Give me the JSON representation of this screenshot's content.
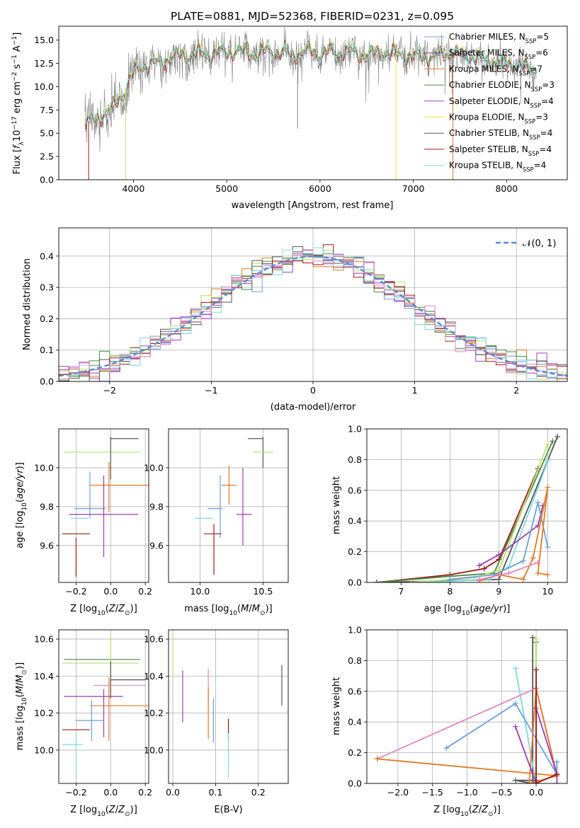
{
  "title": "PLATE=0881, MJD=52368, FIBERID=0231, z=0.095",
  "colors": {
    "chabrier_miles": "#6f9fd8",
    "salpeter_miles": "#9a3fb0",
    "kroupa_miles": "#e07b28",
    "chabrier_elodie": "#4a8a4a",
    "salpeter_elodie": "#a040c0",
    "kroupa_elodie": "#e8e84a",
    "chabrier_stelib": "#555555",
    "salpeter_stelib": "#a01818",
    "kroupa_stelib": "#80d8e0",
    "gauss": "#5b8bd0",
    "pink": "#e088c0",
    "lime": "#b8e070",
    "grid": "#b0b0b0"
  },
  "chart_data": [
    {
      "id": "spectrum",
      "type": "line",
      "title": "PLATE=0881, MJD=52368, FIBERID=0231, z=0.095",
      "xlabel": "wavelength [Angstrom, rest frame]",
      "ylabel": "Flux [f_λ10^-17 erg cm^-2 s^-1 A^-1]",
      "xlim": [
        3200,
        8650
      ],
      "ylim": [
        0,
        16.5
      ],
      "xticks": [
        "4000",
        "5000",
        "6000",
        "7000",
        "8000"
      ],
      "yticks": [
        "0.0",
        "2.5",
        "5.0",
        "7.5",
        "10.0",
        "12.5",
        "15.0"
      ],
      "legend_position": "right",
      "legend": [
        "Chabrier MILES, N_SSP=5",
        "Salpeter MILES, N_SSP=6",
        "Kroupa MILES, N_SSP=7",
        "Chabrier ELODIE, N_SSP=3",
        "Salpeter ELODIE, N_SSP=4",
        "Kroupa ELODIE, N_SSP=3",
        "Chabrier STELIB, N_SSP=4",
        "Salpeter STELIB, N_SSP=4",
        "Kroupa STELIB, N_SSP=4"
      ],
      "continuum": {
        "x": [
          3500,
          3600,
          3700,
          3800,
          3900,
          4000,
          4100,
          4200,
          4300,
          4400,
          4500,
          4600,
          4700,
          4800,
          4900,
          5000,
          5100,
          5200,
          5300,
          5400,
          5500,
          5600,
          5700,
          5800,
          5900,
          6000,
          6100,
          6200,
          6300,
          6400,
          6500,
          6600,
          6700,
          6800,
          6900,
          7000,
          7100,
          7200,
          7300,
          7400,
          7500,
          7600,
          7700,
          7800,
          7900,
          8000,
          8100,
          8200,
          8300
        ],
        "y": [
          6.2,
          6.5,
          7.2,
          8.0,
          9.5,
          11.5,
          12.2,
          12.5,
          12.6,
          13.2,
          13.3,
          13.4,
          13.6,
          13.3,
          13.8,
          13.6,
          13.9,
          13.7,
          13.5,
          13.8,
          13.9,
          13.6,
          13.4,
          13.7,
          13.9,
          13.5,
          13.8,
          13.6,
          13.9,
          13.5,
          13.4,
          13.7,
          13.7,
          13.6,
          13.4,
          13.2,
          13.3,
          13.2,
          13.4,
          13.7,
          13.5,
          13.3,
          13.0,
          12.8,
          12.6,
          12.5,
          12.3,
          12.0,
          11.9
        ]
      },
      "dropouts": [
        {
          "x": 3520,
          "y": 0
        },
        {
          "x": 3915,
          "y": 0
        },
        {
          "x": 5760,
          "y": 5.5
        },
        {
          "x": 6815,
          "y": 0
        },
        {
          "x": 7425,
          "y": 0
        }
      ]
    },
    {
      "id": "residuals",
      "type": "histogram",
      "xlabel": "(data-model)/error",
      "ylabel": "Normed distribution",
      "xlim": [
        -2.5,
        2.5
      ],
      "ylim": [
        0,
        0.49
      ],
      "xticks": [
        "−2",
        "−1",
        "0",
        "1",
        "2"
      ],
      "yticks": [
        "0.0",
        "0.1",
        "0.2",
        "0.3",
        "0.4"
      ],
      "legend_position": "top-right",
      "legend": [
        "𝒩(0, 1)"
      ],
      "bin_width": 0.1
    },
    {
      "id": "age-vs-Z",
      "type": "scatter",
      "xlabel": "Z [log10(Z/Z⊙)]",
      "ylabel": "age  [log10(age/yr)]",
      "xlim": [
        -0.3,
        0.22
      ],
      "ylim": [
        9.41,
        10.2
      ],
      "xticks": [
        "−0.2",
        "0.0",
        "0.2"
      ],
      "yticks": [
        "9.6",
        "9.8",
        "10.0"
      ],
      "errorbars": [
        {
          "series": "Kroupa ELODIE",
          "x": -0.05,
          "y": 10.08,
          "xerr": 0.22,
          "yerr": 0.0
        },
        {
          "series": "Chabrier STELIB",
          "x": 0.08,
          "y": 10.15,
          "xerr": 0.08,
          "yerr": 0.0
        },
        {
          "series": "Chabrier STELIB",
          "x": 0.0,
          "y": 10.05,
          "xerr": 0.0,
          "yerr": 0.11
        },
        {
          "series": "Kroupa MILES",
          "x": 0.05,
          "y": 9.91,
          "xerr": 0.17,
          "yerr": 0.0
        },
        {
          "series": "Kroupa MILES",
          "x": -0.01,
          "y": 9.9,
          "xerr": 0.0,
          "yerr": 0.13
        },
        {
          "series": "Chabrier MILES",
          "x": -0.12,
          "y": 9.86,
          "xerr": 0.0,
          "yerr": 0.12
        },
        {
          "series": "Chabrier MILES",
          "x": -0.12,
          "y": 9.79,
          "xerr": 0.09,
          "yerr": 0.0
        },
        {
          "series": "Salpeter MILES",
          "x": -0.04,
          "y": 9.76,
          "xerr": 0.2,
          "yerr": 0.0
        },
        {
          "series": "Salpeter MILES",
          "x": -0.04,
          "y": 9.75,
          "xerr": 0.0,
          "yerr": 0.21
        },
        {
          "series": "Kroupa STELIB",
          "x": -0.18,
          "y": 9.74,
          "xerr": 0.05,
          "yerr": 0.0
        },
        {
          "series": "Salpeter STELIB",
          "x": -0.2,
          "y": 9.66,
          "xerr": 0.08,
          "yerr": 0.0
        },
        {
          "series": "Salpeter STELIB",
          "x": -0.2,
          "y": 9.54,
          "xerr": 0.0,
          "yerr": 0.1
        }
      ]
    },
    {
      "id": "age-vs-mass",
      "type": "scatter",
      "xlabel": "mass [log10(M/M⊙)]",
      "ylabel": "",
      "xlim": [
        9.75,
        10.7
      ],
      "ylim": [
        9.41,
        10.2
      ],
      "xticks": [
        "10.0",
        "10.5"
      ],
      "yticks": [
        "9.6",
        "9.8",
        "10.0"
      ],
      "errorbars": [
        {
          "series": "Chabrier STELIB",
          "x": 10.44,
          "y": 10.15,
          "xerr": 0.06,
          "yerr": 0.0
        },
        {
          "series": "Chabrier STELIB",
          "x": 10.5,
          "y": 10.08,
          "xerr": 0.0,
          "yerr": 0.08
        },
        {
          "series": "Kroupa ELODIE",
          "x": 10.5,
          "y": 10.08,
          "xerr": 0.08,
          "yerr": 0.0
        },
        {
          "series": "Kroupa MILES",
          "x": 10.23,
          "y": 9.91,
          "xerr": 0.0,
          "yerr": 0.1
        },
        {
          "series": "Kroupa MILES",
          "x": 10.23,
          "y": 9.91,
          "xerr": 0.06,
          "yerr": 0.0
        },
        {
          "series": "Chabrier MILES",
          "x": 10.16,
          "y": 9.8,
          "xerr": 0.0,
          "yerr": 0.16
        },
        {
          "series": "Chabrier MILES",
          "x": 10.12,
          "y": 9.79,
          "xerr": 0.06,
          "yerr": 0.0
        },
        {
          "series": "Salpeter MILES",
          "x": 10.35,
          "y": 9.76,
          "xerr": 0.06,
          "yerr": 0.0
        },
        {
          "series": "Salpeter MILES",
          "x": 10.34,
          "y": 9.8,
          "xerr": 0.0,
          "yerr": 0.2
        },
        {
          "series": "Kroupa STELIB",
          "x": 10.03,
          "y": 9.74,
          "xerr": 0.07,
          "yerr": 0.0
        },
        {
          "series": "Salpeter STELIB",
          "x": 10.1,
          "y": 9.66,
          "xerr": 0.07,
          "yerr": 0.0
        },
        {
          "series": "Salpeter STELIB",
          "x": 10.11,
          "y": 9.58,
          "xerr": 0.0,
          "yerr": 0.13
        }
      ]
    },
    {
      "id": "weight-vs-age",
      "type": "line",
      "xlabel": "age  [log10(age/yr)]",
      "ylabel": "mass weight",
      "xlim": [
        6.3,
        10.4
      ],
      "ylim": [
        0,
        1
      ],
      "xticks": [
        "7",
        "8",
        "9",
        "10"
      ],
      "yticks": [
        "0.0",
        "0.2",
        "0.4",
        "0.6",
        "0.8",
        "1.0"
      ],
      "series": [
        {
          "color": "#555555",
          "x": [
            6.5,
            8.0,
            9.0,
            10.2
          ],
          "y": [
            0.0,
            0.01,
            0.02,
            0.95
          ]
        },
        {
          "color": "#a01818",
          "x": [
            6.5,
            8.0,
            8.7,
            9.0,
            9.8
          ],
          "y": [
            0.0,
            0.05,
            0.09,
            0.15,
            0.74
          ]
        },
        {
          "color": "#4a8a4a",
          "x": [
            6.5,
            8.0,
            8.9,
            10.1
          ],
          "y": [
            0.0,
            0.04,
            0.06,
            0.92
          ]
        },
        {
          "color": "#b8e070",
          "x": [
            7.2,
            8.5,
            9.0,
            10.0
          ],
          "y": [
            0.0,
            0.03,
            0.08,
            0.9
          ]
        },
        {
          "color": "#80d8e0",
          "x": [
            7.5,
            8.8,
            9.2,
            10.0
          ],
          "y": [
            0.0,
            0.02,
            0.1,
            0.79
          ]
        },
        {
          "color": "#9a3fb0",
          "x": [
            8.6,
            9.0,
            9.8,
            9.9
          ],
          "y": [
            0.11,
            0.18,
            0.37,
            0.5
          ]
        },
        {
          "color": "#6f9fd8",
          "x": [
            8.0,
            8.9,
            9.5,
            9.8,
            10.0
          ],
          "y": [
            0.02,
            0.05,
            0.14,
            0.52,
            0.23
          ]
        },
        {
          "color": "#e07b28",
          "x": [
            8.6,
            9.0,
            9.5,
            9.7,
            10.0,
            9.8,
            10.0
          ],
          "y": [
            0.01,
            0.05,
            0.02,
            0.16,
            0.62,
            0.06,
            0.05
          ]
        },
        {
          "color": "#e088c0",
          "x": [
            8.6,
            9.2,
            9.8
          ],
          "y": [
            0.02,
            0.06,
            0.13
          ]
        }
      ]
    },
    {
      "id": "mass-vs-Z",
      "type": "scatter",
      "xlabel": "Z [log10(Z/Z⊙)]",
      "ylabel": "mass [log10(M/M⊙)]",
      "xlim": [
        -0.3,
        0.22
      ],
      "ylim": [
        9.82,
        10.65
      ],
      "xticks": [
        "−0.2",
        "0.0",
        "0.2"
      ],
      "yticks": [
        "10.0",
        "10.2",
        "10.4",
        "10.6"
      ],
      "errorbars": [
        {
          "series": "Chabrier ELODIE",
          "x": -0.05,
          "y": 10.49,
          "xerr": 0.22,
          "yerr": 0.0
        },
        {
          "series": "Kroupa ELODIE",
          "x": -0.06,
          "y": 10.47,
          "xerr": 0.22,
          "yerr": 0.0
        },
        {
          "series": "Kroupa ELODIE",
          "x": 0.0,
          "y": 10.47,
          "xerr": 0.0,
          "yerr": 0.14
        },
        {
          "series": "Chabrier STELIB",
          "x": 0.1,
          "y": 10.38,
          "xerr": 0.1,
          "yerr": 0.0
        },
        {
          "series": "Chabrier STELIB",
          "x": 0.0,
          "y": 10.38,
          "xerr": 0.0,
          "yerr": 0.1
        },
        {
          "series": "Pink",
          "x": 0.05,
          "y": 10.35,
          "xerr": 0.15,
          "yerr": 0.0
        },
        {
          "series": "Salpeter MILES",
          "x": -0.1,
          "y": 10.29,
          "xerr": 0.17,
          "yerr": 0.0
        },
        {
          "series": "Kroupa MILES",
          "x": 0.05,
          "y": 10.24,
          "xerr": 0.17,
          "yerr": 0.0
        },
        {
          "series": "Kroupa MILES",
          "x": -0.01,
          "y": 10.22,
          "xerr": 0.0,
          "yerr": 0.17
        },
        {
          "series": "Salpeter MILES",
          "x": -0.04,
          "y": 10.2,
          "xerr": 0.0,
          "yerr": 0.13
        },
        {
          "series": "Chabrier MILES",
          "x": -0.12,
          "y": 10.16,
          "xerr": 0.08,
          "yerr": 0.0
        },
        {
          "series": "Chabrier MILES",
          "x": -0.11,
          "y": 10.16,
          "xerr": 0.0,
          "yerr": 0.11
        },
        {
          "series": "Salpeter STELIB",
          "x": -0.2,
          "y": 10.11,
          "xerr": 0.08,
          "yerr": 0.0
        },
        {
          "series": "Kroupa STELIB",
          "x": -0.22,
          "y": 10.03,
          "xerr": 0.06,
          "yerr": 0.0
        },
        {
          "series": "Kroupa STELIB",
          "x": -0.2,
          "y": 9.97,
          "xerr": 0.0,
          "yerr": 0.12
        }
      ]
    },
    {
      "id": "mass-vs-ebv",
      "type": "scatter",
      "xlabel": "E(B-V)",
      "ylabel": "",
      "xlim": [
        -0.01,
        0.27
      ],
      "ylim": [
        9.82,
        10.65
      ],
      "xticks": [
        "0.0",
        "0.1",
        "0.2"
      ],
      "yticks": [
        "10.0",
        "10.2",
        "10.4",
        "10.6"
      ],
      "errorbars": [
        {
          "series": "Kroupa ELODIE",
          "x": 0.0,
          "y": 10.49,
          "xerr": 0.0,
          "yerr": 0.12
        },
        {
          "series": "Salpeter MILES",
          "x": 0.023,
          "y": 10.29,
          "xerr": 0.0,
          "yerr": 0.14
        },
        {
          "series": "Pink",
          "x": 0.083,
          "y": 10.33,
          "xerr": 0.0,
          "yerr": 0.11
        },
        {
          "series": "Kroupa MILES",
          "x": 0.083,
          "y": 10.2,
          "xerr": 0.0,
          "yerr": 0.14
        },
        {
          "series": "Chabrier MILES",
          "x": 0.095,
          "y": 10.16,
          "xerr": 0.0,
          "yerr": 0.12
        },
        {
          "series": "Salpeter STELIB",
          "x": 0.13,
          "y": 10.11,
          "xerr": 0.0,
          "yerr": 0.06
        },
        {
          "series": "Kroupa STELIB",
          "x": 0.13,
          "y": 9.97,
          "xerr": 0.0,
          "yerr": 0.12
        },
        {
          "series": "Chabrier STELIB",
          "x": 0.255,
          "y": 10.35,
          "xerr": 0.0,
          "yerr": 0.11
        }
      ]
    },
    {
      "id": "weight-vs-Z",
      "type": "line",
      "xlabel": "Z [log10(Z/Z⊙)]",
      "ylabel": "mass weight",
      "xlim": [
        -2.45,
        0.45
      ],
      "ylim": [
        0,
        1
      ],
      "xticks": [
        "−2.0",
        "−1.5",
        "−1.0",
        "−0.5",
        "0.0"
      ],
      "yticks": [
        "0.0",
        "0.2",
        "0.4",
        "0.6",
        "0.8",
        "1.0"
      ],
      "series": [
        {
          "color": "#555555",
          "x": [
            -0.05,
            -0.05,
            -0.3,
            0.0
          ],
          "y": [
            0.95,
            0.0,
            0.02,
            0.02
          ]
        },
        {
          "color": "#4a8a4a",
          "x": [
            0.0,
            0.0
          ],
          "y": [
            0.92,
            0.0
          ]
        },
        {
          "color": "#b8e070",
          "x": [
            0.0,
            0.0
          ],
          "y": [
            0.94,
            0.0
          ]
        },
        {
          "color": "#80d8e0",
          "x": [
            -0.3,
            0.0,
            0.0
          ],
          "y": [
            0.75,
            0.0,
            0.06
          ]
        },
        {
          "color": "#e088c0",
          "x": [
            -2.3,
            0.0,
            0.3
          ],
          "y": [
            0.16,
            0.62,
            0.06
          ]
        },
        {
          "color": "#e07b28",
          "x": [
            -2.3,
            0.3,
            0.0,
            -0.1,
            0.3
          ],
          "y": [
            0.16,
            0.05,
            0.62,
            0.0,
            0.05
          ]
        },
        {
          "color": "#6f9fd8",
          "x": [
            -1.3,
            -0.3,
            0.3,
            0.3
          ],
          "y": [
            0.23,
            0.52,
            0.06,
            0.14
          ]
        },
        {
          "color": "#9a3fb0",
          "x": [
            -0.3,
            0.0,
            0.0,
            0.3,
            0.3
          ],
          "y": [
            0.37,
            0.0,
            0.49,
            0.06,
            0.0
          ]
        },
        {
          "color": "#a01818",
          "x": [
            0.0,
            0.0,
            0.3
          ],
          "y": [
            0.74,
            0.0,
            0.06
          ]
        }
      ]
    }
  ]
}
